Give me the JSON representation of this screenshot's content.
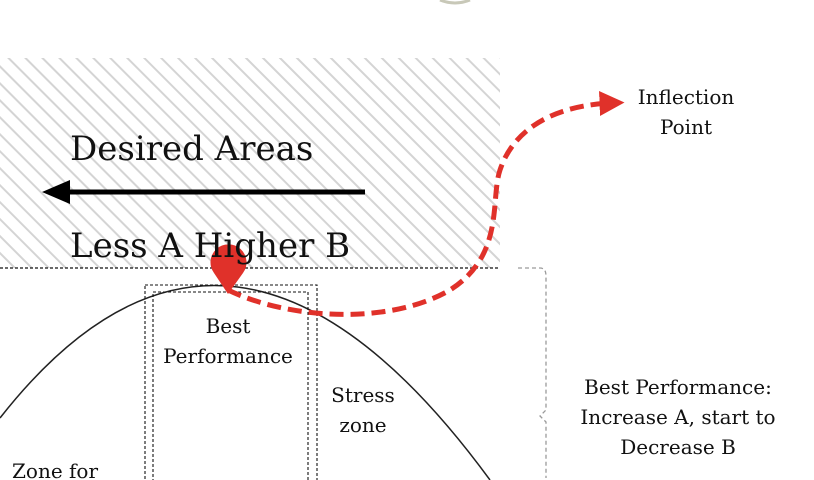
{
  "diagram": {
    "desired_areas_label": "Desired Areas",
    "direction_label": "Less A Higher B",
    "callouts": {
      "inflection_line1": "Inflection",
      "inflection_line2": "Point",
      "best_perf_bracket_line1": "Best Performance:",
      "best_perf_bracket_line2": "Increase A, start to",
      "best_perf_bracket_line3": "Decrease B"
    },
    "zones": {
      "best_line1": "Best",
      "best_line2": "Performance",
      "stress_line1": "Stress",
      "stress_line2": "zone",
      "left_partial": "Zone for"
    },
    "colors": {
      "hatch": "#d4d4d4",
      "accent_red": "#e0312a",
      "curve": "#222222",
      "bracket": "#9a9a9a"
    }
  }
}
